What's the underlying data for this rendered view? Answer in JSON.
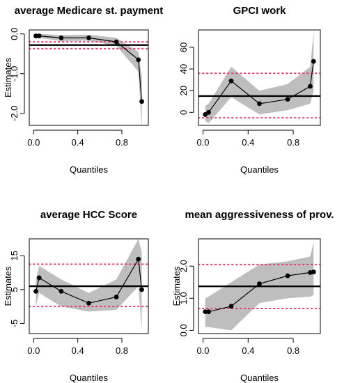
{
  "chart_data": [
    {
      "type": "line",
      "title": "average Medicare st. payment",
      "xlabel": "Quantiles",
      "ylabel": "Estimates",
      "xlim": [
        -0.04,
        1.04
      ],
      "ylim": [
        -2.3,
        0.1
      ],
      "xticks": [
        0.0,
        0.4,
        0.8
      ],
      "xtick_labels": [
        "0.0",
        "0.4",
        "0.8"
      ],
      "yticks": [
        0.0,
        -1.0,
        -2.0
      ],
      "ytick_labels": [
        "0.0",
        "-1.0",
        "-2.0"
      ],
      "x": [
        0.02,
        0.05,
        0.25,
        0.5,
        0.75,
        0.95,
        0.98
      ],
      "y": [
        -0.05,
        -0.05,
        -0.1,
        -0.1,
        -0.2,
        -0.65,
        -1.7
      ],
      "ci_lower": [
        -0.12,
        -0.1,
        -0.18,
        -0.17,
        -0.3,
        -0.95,
        -2.4
      ],
      "ci_upper": [
        0.0,
        0.0,
        -0.03,
        -0.02,
        -0.1,
        -0.45,
        -1.05
      ],
      "ols_estimate": -0.28,
      "ols_ci": [
        -0.37,
        -0.2
      ],
      "grid": false
    },
    {
      "type": "line",
      "title": "GPCI work",
      "xlabel": "Quantiles",
      "ylabel": "",
      "xlim": [
        -0.04,
        1.04
      ],
      "ylim": [
        -12,
        76
      ],
      "xticks": [
        0.0,
        0.4,
        0.8
      ],
      "xtick_labels": [
        "0.0",
        "0.4",
        "0.8"
      ],
      "yticks": [
        0,
        20,
        40,
        60
      ],
      "ytick_labels": [
        "0",
        "20",
        "40",
        "60"
      ],
      "x": [
        0.02,
        0.05,
        0.25,
        0.5,
        0.75,
        0.95,
        0.98
      ],
      "y": [
        -2,
        0,
        29,
        8,
        12,
        24,
        47
      ],
      "ci_lower": [
        -8,
        -10,
        14,
        -2,
        2,
        8,
        20
      ],
      "ci_upper": [
        6,
        8,
        42,
        20,
        26,
        42,
        74
      ],
      "ols_estimate": 15,
      "ols_ci": [
        -5,
        36
      ],
      "grid": false
    },
    {
      "type": "line",
      "title": "average HCC Score",
      "xlabel": "Quantiles",
      "ylabel": "Estimates",
      "xlim": [
        -0.04,
        1.04
      ],
      "ylim": [
        -8,
        20
      ],
      "xticks": [
        0.0,
        0.4,
        0.8
      ],
      "xtick_labels": [
        "0.0",
        "0.4",
        "0.8"
      ],
      "yticks": [
        -5,
        5,
        15
      ],
      "ytick_labels": [
        "-5",
        "5",
        "15"
      ],
      "x": [
        0.02,
        0.05,
        0.25,
        0.5,
        0.75,
        0.95,
        0.98
      ],
      "y": [
        4.5,
        8.5,
        4.5,
        1,
        2.8,
        14,
        5
      ],
      "ci_lower": [
        0,
        4,
        0,
        -1.5,
        -1,
        6,
        -7
      ],
      "ci_upper": [
        8,
        12,
        8,
        4,
        8,
        20,
        16
      ],
      "ols_estimate": 6,
      "ols_ci": [
        0,
        12.5
      ],
      "grid": false
    },
    {
      "type": "line",
      "title": "mean aggressiveness of prov.",
      "xlabel": "Quantiles",
      "ylabel": "Estimates",
      "xlim": [
        -0.04,
        1.04
      ],
      "ylim": [
        -0.1,
        2.85
      ],
      "xticks": [
        0.0,
        0.4,
        0.8
      ],
      "xtick_labels": [
        "0.0",
        "0.4",
        "0.8"
      ],
      "yticks": [
        0.0,
        1.0,
        2.0
      ],
      "ytick_labels": [
        "0.0",
        "1.0",
        "2.0"
      ],
      "x": [
        0.02,
        0.05,
        0.25,
        0.5,
        0.75,
        0.95,
        0.98
      ],
      "y": [
        0.58,
        0.58,
        0.75,
        1.45,
        1.7,
        1.8,
        1.82
      ],
      "ci_lower": [
        0.1,
        0.1,
        0.0,
        0.85,
        1.0,
        1.05,
        1.1
      ],
      "ci_upper": [
        1.0,
        1.05,
        1.5,
        2.05,
        2.15,
        2.3,
        2.75
      ],
      "ols_estimate": 1.37,
      "ols_ci": [
        0.68,
        2.05
      ],
      "grid": false
    }
  ]
}
